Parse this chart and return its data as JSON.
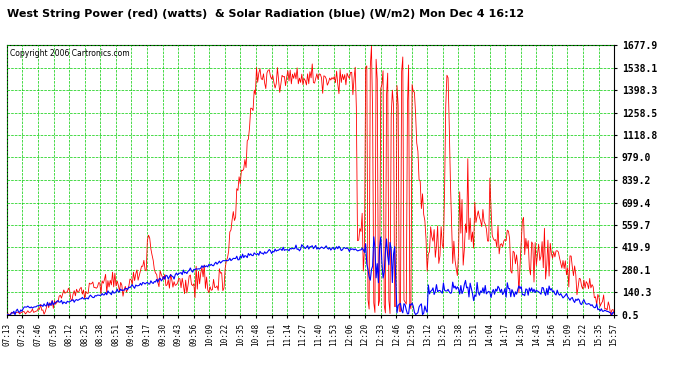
{
  "title": "West String Power (red) (watts)  & Solar Radiation (blue) (W/m2) Mon Dec 4 16:12",
  "copyright": "Copyright 2006 Cartronics.com",
  "background_color": "#ffffff",
  "plot_bg_color": "#ffffff",
  "grid_color": "#00cc00",
  "y_ticks": [
    0.5,
    140.3,
    280.1,
    419.9,
    559.7,
    699.4,
    839.2,
    979.0,
    1118.8,
    1258.5,
    1398.3,
    1538.1,
    1677.9
  ],
  "ylim": [
    0.5,
    1677.9
  ],
  "x_labels": [
    "07:13",
    "07:29",
    "07:46",
    "07:59",
    "08:12",
    "08:25",
    "08:38",
    "08:51",
    "09:04",
    "09:17",
    "09:30",
    "09:43",
    "09:56",
    "10:09",
    "10:22",
    "10:35",
    "10:48",
    "11:01",
    "11:14",
    "11:27",
    "11:40",
    "11:53",
    "12:06",
    "12:20",
    "12:33",
    "12:46",
    "12:59",
    "13:12",
    "13:25",
    "13:38",
    "13:51",
    "14:04",
    "14:17",
    "14:30",
    "14:43",
    "14:56",
    "15:09",
    "15:22",
    "15:35",
    "15:57"
  ],
  "red_color": "#ff0000",
  "blue_color": "#0000ff"
}
